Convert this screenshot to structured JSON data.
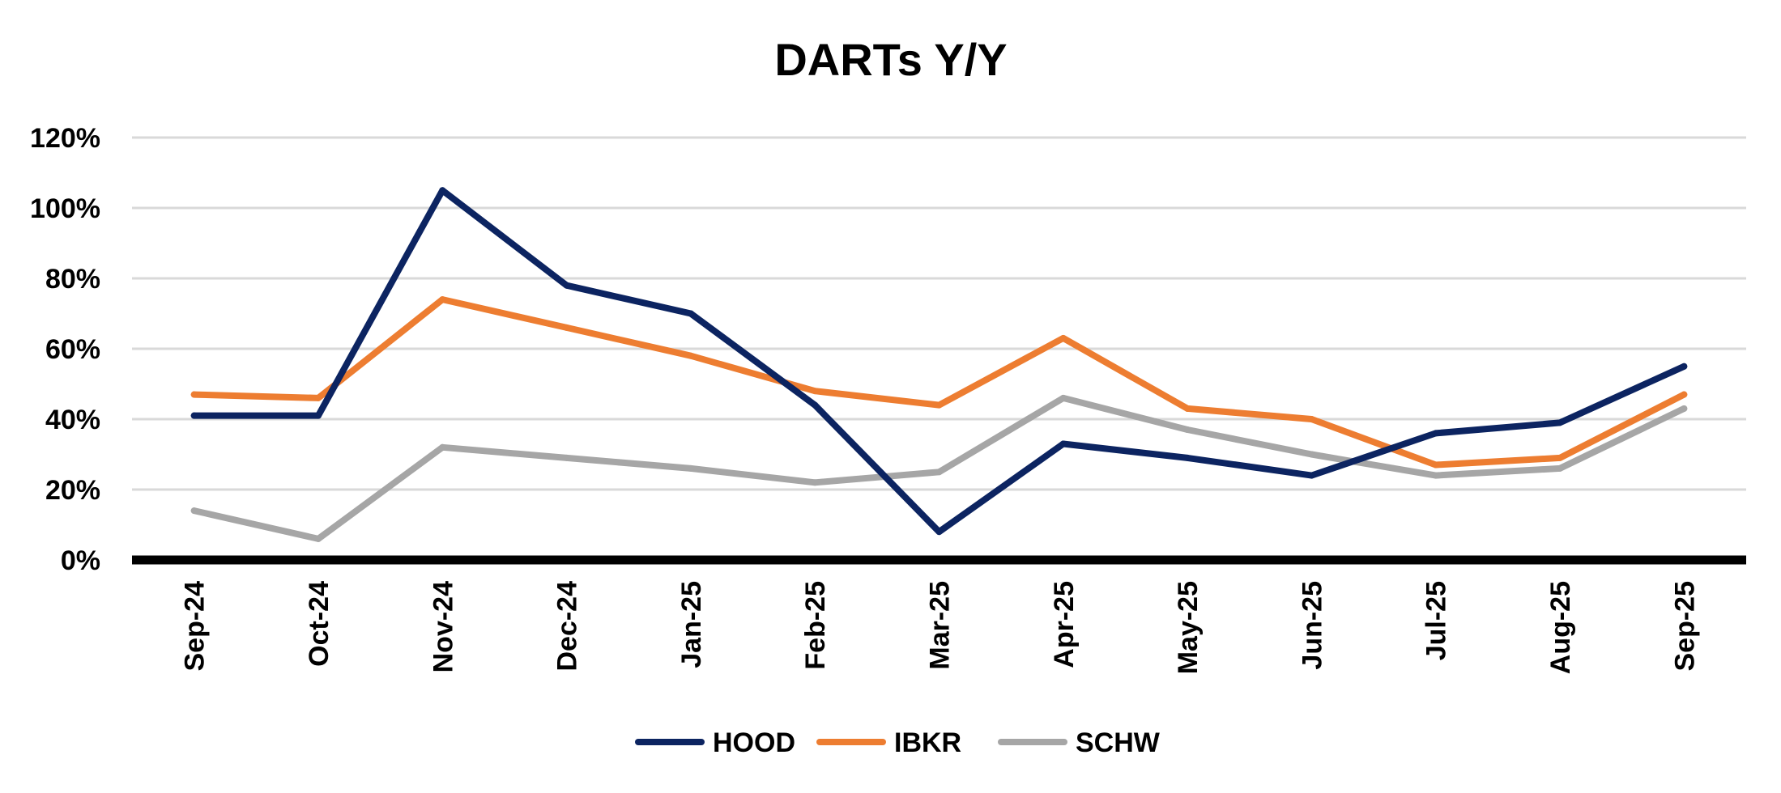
{
  "chart_data": {
    "type": "line",
    "title": "DARTs Y/Y",
    "xlabel": "",
    "ylabel": "",
    "categories": [
      "Sep-24",
      "Oct-24",
      "Nov-24",
      "Dec-24",
      "Jan-25",
      "Feb-25",
      "Mar-25",
      "Apr-25",
      "May-25",
      "Jun-25",
      "Jul-25",
      "Aug-25",
      "Sep-25"
    ],
    "ylim": [
      0,
      120
    ],
    "yticks": [
      0,
      20,
      40,
      60,
      80,
      100,
      120
    ],
    "ytick_labels": [
      "0%",
      "20%",
      "40%",
      "60%",
      "80%",
      "100%",
      "120%"
    ],
    "grid": true,
    "legend_position": "bottom",
    "series": [
      {
        "name": "HOOD",
        "color": "#0c2461",
        "values": [
          41,
          41,
          105,
          78,
          70,
          44,
          8,
          33,
          29,
          24,
          36,
          39,
          55
        ]
      },
      {
        "name": "IBKR",
        "color": "#ed7d31",
        "values": [
          47,
          46,
          74,
          66,
          58,
          48,
          44,
          63,
          43,
          40,
          27,
          29,
          47
        ]
      },
      {
        "name": "SCHW",
        "color": "#a6a6a6",
        "values": [
          14,
          6,
          32,
          29,
          26,
          22,
          25,
          46,
          37,
          30,
          24,
          26,
          43
        ]
      }
    ]
  }
}
